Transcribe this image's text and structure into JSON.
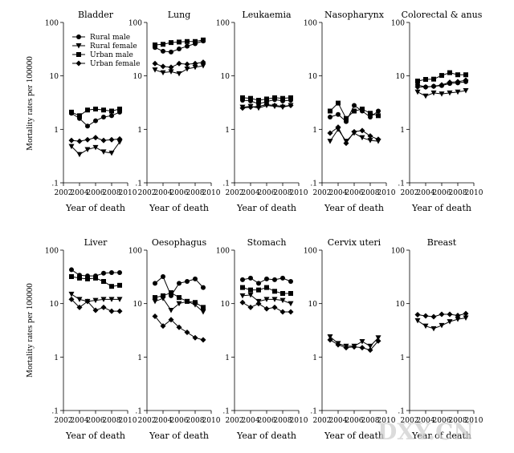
{
  "figure": {
    "ylabel": "Mortality rates per 100000",
    "xlabel": "Year of death",
    "watermark": "DXY.CN"
  },
  "legend": [
    {
      "label": "Rural male",
      "marker": "circle"
    },
    {
      "label": "Rural female",
      "marker": "triangle-down"
    },
    {
      "label": "Urban male",
      "marker": "square"
    },
    {
      "label": "Urban female",
      "marker": "diamond"
    }
  ],
  "chart_data": [
    {
      "type": "line",
      "title": "Bladder",
      "xlabel": "Year of death",
      "ylabel": "Mortality rates per 100000",
      "yscale": "log",
      "xlim": [
        2002,
        2010
      ],
      "ylim": [
        0.1,
        100
      ],
      "xticks": [
        "2002",
        "2004",
        "2006",
        "2008",
        "2010"
      ],
      "yticks": [
        ".1",
        "1",
        "10",
        "100"
      ],
      "x": [
        2003,
        2004,
        2005,
        2006,
        2007,
        2008,
        2009
      ],
      "series": [
        {
          "name": "Rural male",
          "marker": "circle",
          "values": [
            2.0,
            1.6,
            1.15,
            1.45,
            1.7,
            1.8,
            2.1
          ]
        },
        {
          "name": "Rural female",
          "marker": "triangle-down",
          "values": [
            0.48,
            0.34,
            0.42,
            0.46,
            0.38,
            0.36,
            0.58
          ]
        },
        {
          "name": "Urban male",
          "marker": "square",
          "values": [
            2.1,
            1.8,
            2.3,
            2.4,
            2.3,
            2.2,
            2.4
          ]
        },
        {
          "name": "Urban female",
          "marker": "diamond",
          "values": [
            0.62,
            0.6,
            0.64,
            0.7,
            0.62,
            0.64,
            0.66
          ]
        }
      ],
      "legend": "top-left"
    },
    {
      "type": "line",
      "title": "Lung",
      "xlabel": "Year of death",
      "yscale": "log",
      "xlim": [
        2002,
        2010
      ],
      "ylim": [
        0.1,
        100
      ],
      "xticks": [
        "2002",
        "2004",
        "2006",
        "2008",
        "2010"
      ],
      "yticks": [
        ".1",
        "1",
        "10",
        "100"
      ],
      "x": [
        2003,
        2004,
        2005,
        2006,
        2007,
        2008,
        2009
      ],
      "series": [
        {
          "name": "Rural male",
          "marker": "circle",
          "values": [
            34,
            29,
            28,
            32,
            36,
            40,
            45
          ]
        },
        {
          "name": "Rural female",
          "marker": "triangle-down",
          "values": [
            13,
            11.5,
            12,
            11,
            13.5,
            14.5,
            15.5
          ]
        },
        {
          "name": "Urban male",
          "marker": "square",
          "values": [
            38,
            39,
            42,
            43,
            44,
            44,
            47
          ]
        },
        {
          "name": "Urban female",
          "marker": "diamond",
          "values": [
            17,
            15,
            14.5,
            17,
            16.5,
            17,
            18
          ]
        }
      ]
    },
    {
      "type": "line",
      "title": "Leukaemia",
      "xlabel": "Year of death",
      "yscale": "log",
      "xlim": [
        2002,
        2010
      ],
      "ylim": [
        0.1,
        100
      ],
      "xticks": [
        "2002",
        "2004",
        "2006",
        "2008",
        "2010"
      ],
      "yticks": [
        ".1",
        "1",
        "10",
        "100"
      ],
      "x": [
        2003,
        2004,
        2005,
        2006,
        2007,
        2008,
        2009
      ],
      "series": [
        {
          "name": "Rural male",
          "marker": "circle",
          "values": [
            3.5,
            3.4,
            3.0,
            3.3,
            3.6,
            3.4,
            3.5
          ]
        },
        {
          "name": "Rural female",
          "marker": "triangle-down",
          "values": [
            2.6,
            2.7,
            2.5,
            2.8,
            2.7,
            2.6,
            2.8
          ]
        },
        {
          "name": "Urban male",
          "marker": "square",
          "values": [
            3.9,
            3.8,
            3.5,
            3.7,
            3.9,
            3.8,
            3.9
          ]
        },
        {
          "name": "Urban female",
          "marker": "diamond",
          "values": [
            2.5,
            2.6,
            2.7,
            2.9,
            2.8,
            2.7,
            2.8
          ]
        }
      ]
    },
    {
      "type": "line",
      "title": "Nasopharynx",
      "xlabel": "Year of death",
      "yscale": "log",
      "xlim": [
        2002,
        2010
      ],
      "ylim": [
        0.1,
        100
      ],
      "xticks": [
        "2002",
        "2004",
        "2006",
        "2008",
        "2010"
      ],
      "yticks": [
        ".1",
        "1",
        "10",
        "100"
      ],
      "x": [
        2003,
        2004,
        2005,
        2006,
        2007,
        2008,
        2009
      ],
      "series": [
        {
          "name": "Rural male",
          "marker": "circle",
          "values": [
            1.7,
            1.9,
            1.4,
            2.8,
            2.2,
            1.7,
            2.2
          ]
        },
        {
          "name": "Rural female",
          "marker": "triangle-down",
          "values": [
            0.6,
            1.0,
            0.6,
            0.85,
            0.7,
            0.62,
            0.6
          ]
        },
        {
          "name": "Urban male",
          "marker": "square",
          "values": [
            2.2,
            3.1,
            1.6,
            2.2,
            2.4,
            2.0,
            1.8
          ]
        },
        {
          "name": "Urban female",
          "marker": "diamond",
          "values": [
            0.85,
            1.1,
            0.55,
            0.9,
            0.95,
            0.75,
            0.65
          ]
        }
      ]
    },
    {
      "type": "line",
      "title": "Colorectal & anus",
      "xlabel": "Year of death",
      "yscale": "log",
      "xlim": [
        2002,
        2010
      ],
      "ylim": [
        0.1,
        100
      ],
      "xticks": [
        "2002",
        "2004",
        "2006",
        "2008",
        "2010"
      ],
      "yticks": [
        ".1",
        "1",
        "10",
        "100"
      ],
      "x": [
        2003,
        2004,
        2005,
        2006,
        2007,
        2008,
        2009
      ],
      "series": [
        {
          "name": "Rural male",
          "marker": "circle",
          "values": [
            6.8,
            6.2,
            6.4,
            6.6,
            7.2,
            7.4,
            7.8
          ]
        },
        {
          "name": "Rural female",
          "marker": "triangle-down",
          "values": [
            5.0,
            4.2,
            4.8,
            4.6,
            4.8,
            5.0,
            5.3
          ]
        },
        {
          "name": "Urban male",
          "marker": "square",
          "values": [
            8.0,
            8.6,
            8.7,
            10.2,
            11.5,
            10.5,
            10.5
          ]
        },
        {
          "name": "Urban female",
          "marker": "diamond",
          "values": [
            6.2,
            6.2,
            6.4,
            6.8,
            7.6,
            7.8,
            8.3
          ]
        }
      ]
    },
    {
      "type": "line",
      "title": "Liver",
      "xlabel": "Year of death",
      "ylabel": "Mortality rates per 100000",
      "yscale": "log",
      "xlim": [
        2002,
        2010
      ],
      "ylim": [
        0.1,
        100
      ],
      "xticks": [
        "2002",
        "2004",
        "2006",
        "2008",
        "2010"
      ],
      "yticks": [
        ".1",
        "1",
        "10",
        "100"
      ],
      "x": [
        2003,
        2004,
        2005,
        2006,
        2007,
        2008,
        2009
      ],
      "series": [
        {
          "name": "Rural male",
          "marker": "circle",
          "values": [
            43,
            34,
            33,
            33,
            37,
            38,
            38
          ]
        },
        {
          "name": "Rural female",
          "marker": "triangle-down",
          "values": [
            15,
            12,
            11,
            11.5,
            12,
            12,
            12
          ]
        },
        {
          "name": "Urban male",
          "marker": "square",
          "values": [
            32,
            30,
            29,
            30,
            26,
            21,
            22
          ]
        },
        {
          "name": "Urban female",
          "marker": "diamond",
          "values": [
            12,
            8.5,
            11,
            7.5,
            8.5,
            7.2,
            7.2
          ]
        }
      ]
    },
    {
      "type": "line",
      "title": "Oesophagus",
      "xlabel": "Year of death",
      "yscale": "log",
      "xlim": [
        2002,
        2010
      ],
      "ylim": [
        0.1,
        100
      ],
      "xticks": [
        "2002",
        "2004",
        "2006",
        "2008",
        "2010"
      ],
      "yticks": [
        ".1",
        "1",
        "10",
        "100"
      ],
      "x": [
        2003,
        2004,
        2005,
        2006,
        2007,
        2008,
        2009
      ],
      "series": [
        {
          "name": "Rural male",
          "marker": "circle",
          "values": [
            24,
            32,
            14,
            24,
            26,
            29,
            20
          ]
        },
        {
          "name": "Rural female",
          "marker": "triangle-down",
          "values": [
            11,
            12.5,
            7.5,
            10,
            11,
            9.5,
            7.0
          ]
        },
        {
          "name": "Urban male",
          "marker": "square",
          "values": [
            13,
            14,
            16,
            13,
            11,
            10.5,
            8.5
          ]
        },
        {
          "name": "Urban female",
          "marker": "diamond",
          "values": [
            5.8,
            3.8,
            5.0,
            3.6,
            2.9,
            2.3,
            2.1
          ]
        }
      ]
    },
    {
      "type": "line",
      "title": "Stomach",
      "xlabel": "Year of death",
      "yscale": "log",
      "xlim": [
        2002,
        2010
      ],
      "ylim": [
        0.1,
        100
      ],
      "xticks": [
        "2002",
        "2004",
        "2006",
        "2008",
        "2010"
      ],
      "yticks": [
        ".1",
        "1",
        "10",
        "100"
      ],
      "x": [
        2003,
        2004,
        2005,
        2006,
        2007,
        2008,
        2009
      ],
      "series": [
        {
          "name": "Rural male",
          "marker": "circle",
          "values": [
            28,
            30,
            24,
            29,
            28,
            30,
            26
          ]
        },
        {
          "name": "Rural female",
          "marker": "triangle-down",
          "values": [
            14,
            14.5,
            11,
            12,
            12,
            11.5,
            10
          ]
        },
        {
          "name": "Urban male",
          "marker": "square",
          "values": [
            20,
            18,
            18,
            20,
            17,
            15.5,
            15.5
          ]
        },
        {
          "name": "Urban female",
          "marker": "diamond",
          "values": [
            10.5,
            8.5,
            10,
            8.0,
            8.5,
            7.0,
            7.0
          ]
        }
      ]
    },
    {
      "type": "line",
      "title": "Cervix uteri",
      "xlabel": "Year of death",
      "yscale": "log",
      "xlim": [
        2002,
        2010
      ],
      "ylim": [
        0.1,
        100
      ],
      "xticks": [
        "2002",
        "2004",
        "2006",
        "2008",
        "2010"
      ],
      "yticks": [
        ".1",
        "1",
        "10",
        "100"
      ],
      "x": [
        2003,
        2004,
        2005,
        2006,
        2007,
        2008,
        2009
      ],
      "series": [
        {
          "name": "Rural female",
          "marker": "triangle-down",
          "values": [
            2.4,
            1.8,
            1.6,
            1.6,
            1.95,
            1.6,
            2.3
          ]
        },
        {
          "name": "Urban female",
          "marker": "diamond",
          "values": [
            2.1,
            1.7,
            1.5,
            1.55,
            1.5,
            1.35,
            2.0
          ]
        }
      ]
    },
    {
      "type": "line",
      "title": "Breast",
      "xlabel": "Year of death",
      "yscale": "log",
      "xlim": [
        2002,
        2010
      ],
      "ylim": [
        0.1,
        100
      ],
      "xticks": [
        "2002",
        "2004",
        "2006",
        "2008",
        "2010"
      ],
      "yticks": [
        ".1",
        "1",
        "10",
        "100"
      ],
      "x": [
        2003,
        2004,
        2005,
        2006,
        2007,
        2008,
        2009
      ],
      "series": [
        {
          "name": "Rural female",
          "marker": "triangle-down",
          "values": [
            4.8,
            3.8,
            3.4,
            3.9,
            4.6,
            5.1,
            5.4
          ]
        },
        {
          "name": "Urban female",
          "marker": "diamond",
          "values": [
            6.2,
            5.9,
            5.7,
            6.3,
            6.3,
            6.0,
            6.5
          ]
        }
      ]
    }
  ]
}
